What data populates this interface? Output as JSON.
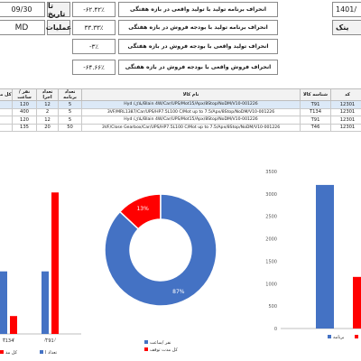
{
  "top_left": {
    "date_value": "09/30",
    "date_label": "تا تاریخ",
    "ops_value": "MD",
    "ops_label": "عملیات"
  },
  "top_right": {
    "date_value": "1401/",
    "code_label": "ینک"
  },
  "kpis": [
    {
      "label": "انحراف برنامه تولید با تولید واقعی در بازه هفتگی",
      "value": "-۶۲.۴۲٪"
    },
    {
      "label": "انحراف برنامه تولید با بودجه فروش در بازه هفتگی",
      "value": "۳۳.۳۳٪"
    },
    {
      "label": "انحراف تولید واقعی با بودجه فروش در بازه هفتگی",
      "value": "-۳٪"
    },
    {
      "label": "انحراف فروش واقعی با بودجه فروش در بازه هفتگی",
      "value": "-۶۴.۶۶٪"
    }
  ],
  "table": {
    "headers": {
      "col_total": "کل مد",
      "col_person_hour": "نفر /ساعت",
      "col_exec_count": "تعداد اجرا",
      "col_program_count": "تعداد برنامه",
      "col_name": "نام کالا",
      "col_id": "شناسه کالا",
      "col_code": "کد"
    },
    "rows": [
      {
        "total": "",
        "person_hour": "120",
        "exec": "12",
        "program": "5",
        "name": "Hyd /بلاک/Blain 4W/Car/UPS/Mot15/Apx/8Stop/NoDM/V10-001226",
        "id": "T91",
        "code": "12301"
      },
      {
        "total": "",
        "person_hour": "400",
        "exec": "2",
        "program": "5",
        "name": "3VF/MRL1387/Car/UPS/HP7.5L100 C/Mot up to 7.5/Apx/8Stop/NoDM/V10-001226",
        "id": "T134",
        "code": "12301"
      },
      {
        "total": "",
        "person_hour": "120",
        "exec": "12",
        "program": "5",
        "name": "Hyd /بلاک/Blain 4W/Car/UPS/Mot15/Apx/8Stop/NoDM/V10-001226",
        "id": "T91",
        "code": "12301"
      },
      {
        "total": "",
        "person_hour": "135",
        "exec": "20",
        "program": "50",
        "name": "3VF/Close Gearbox/Car/UPS/HP7.5L100 C/Mot up to 7.5/Apx/8Stop/NoDM/V10-001226",
        "id": "T46",
        "code": "12301"
      }
    ]
  },
  "chart_data": [
    {
      "type": "bar",
      "categories": [
        "T134",
        "T91"
      ],
      "series": [
        {
          "name": "",
          "color": "#4472c4",
          "values": [
            42,
            42
          ]
        },
        {
          "name": "",
          "color": "#ff0000",
          "values": [
            12,
            95
          ]
        }
      ],
      "legend_entries": [
        "تعداد ا",
        "کل مد"
      ],
      "legend_placement": "bottom"
    },
    {
      "type": "pie",
      "donut": true,
      "slices": [
        {
          "name": "نفر /ساعت",
          "value": 87,
          "label": "87%",
          "color": "#4472c4"
        },
        {
          "name": "کل مدت توقف",
          "value": 13,
          "label": "13%",
          "color": "#ff0000"
        }
      ],
      "legend_placement": "bottom"
    },
    {
      "type": "bar",
      "yticks": [
        "0",
        "500",
        "1000",
        "1500",
        "2000",
        "2500",
        "3000",
        "3500"
      ],
      "ylim": [
        0,
        3500
      ],
      "series": [
        {
          "name": "برنامه",
          "color": "#4472c4",
          "values": [
            3200
          ]
        },
        {
          "name": "",
          "color": "#ff0000",
          "values": [
            1150
          ]
        }
      ],
      "legend_placement": "bottom"
    }
  ]
}
